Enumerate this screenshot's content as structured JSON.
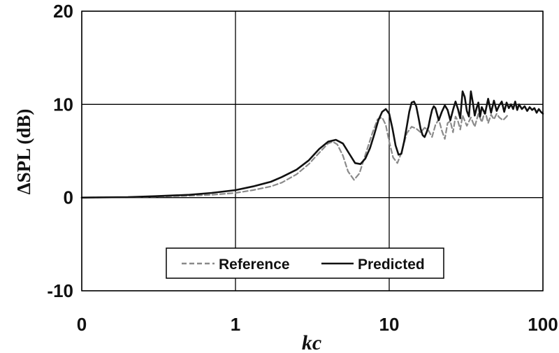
{
  "chart_data": {
    "type": "line",
    "xlabel": "kc",
    "ylabel": "ΔSPL (dB)",
    "x_scale": "log",
    "xlim": [
      0.1,
      100
    ],
    "ylim": [
      -10,
      20
    ],
    "grid": true,
    "legend_position": "bottom-center",
    "x_tick_labels": [
      "0",
      "1",
      "10",
      "100"
    ],
    "y_tick_labels": [
      "-10",
      "0",
      "10",
      "20"
    ],
    "y_ticks": [
      -10,
      0,
      10,
      20
    ],
    "series": [
      {
        "name": "Reference",
        "style": "dashed",
        "color": "#8a8a8a",
        "x": [
          0.1,
          0.2,
          0.3,
          0.5,
          0.7,
          1.0,
          1.3,
          1.7,
          2.0,
          2.5,
          3.0,
          3.5,
          4.0,
          4.3,
          4.6,
          5.0,
          5.4,
          5.9,
          6.4,
          7.0,
          7.8,
          8.4,
          9.0,
          9.5,
          10.0,
          10.6,
          11.3,
          12.0,
          13.0,
          14.0,
          15.0,
          16.0,
          17.0,
          18.0,
          19.0,
          20.0,
          21.0,
          22.0,
          23.0,
          24.0,
          25.0,
          26.0,
          27.0,
          28.0,
          29.0,
          30.0,
          32.0,
          34.0,
          36.0,
          38.0,
          40.0,
          42.0,
          44.0,
          46.0,
          48.0,
          50.0,
          52.0,
          55.0,
          58.0,
          60.0
        ],
        "y": [
          0.0,
          0.05,
          0.1,
          0.2,
          0.3,
          0.5,
          0.8,
          1.2,
          1.6,
          2.5,
          3.6,
          4.8,
          5.8,
          6.0,
          5.7,
          4.5,
          2.8,
          1.9,
          2.6,
          4.6,
          7.0,
          8.4,
          8.6,
          7.8,
          6.0,
          4.3,
          3.7,
          4.8,
          6.9,
          7.6,
          7.4,
          7.0,
          7.5,
          7.2,
          6.5,
          7.8,
          8.4,
          7.2,
          6.3,
          8.0,
          8.2,
          7.0,
          8.7,
          8.2,
          7.3,
          8.8,
          7.7,
          8.6,
          7.6,
          9.0,
          8.1,
          9.3,
          8.0,
          8.9,
          8.4,
          9.0,
          8.6,
          8.3,
          8.7,
          9.0
        ]
      },
      {
        "name": "Predicted",
        "style": "solid",
        "color": "#111111",
        "x": [
          0.1,
          0.2,
          0.3,
          0.5,
          0.7,
          1.0,
          1.3,
          1.7,
          2.0,
          2.5,
          3.0,
          3.5,
          4.0,
          4.5,
          5.0,
          5.5,
          6.0,
          6.5,
          7.0,
          7.5,
          8.0,
          8.5,
          9.0,
          9.5,
          10.0,
          10.5,
          11.0,
          11.5,
          12.0,
          12.5,
          13.0,
          13.5,
          14.0,
          14.5,
          15.0,
          15.5,
          16.0,
          16.5,
          17.0,
          17.5,
          18.0,
          18.5,
          19.0,
          19.5,
          20.0,
          21.0,
          22.0,
          23.0,
          24.0,
          25.0,
          26.0,
          27.0,
          28.0,
          29.0,
          30.0,
          31.0,
          32.0,
          33.0,
          34.0,
          35.0,
          36.0,
          37.0,
          38.0,
          39.0,
          40.0,
          42.0,
          44.0,
          46.0,
          48.0,
          50.0,
          52.0,
          54.0,
          56.0,
          58.0,
          60.0,
          62.0,
          64.0,
          66.0,
          68.0,
          70.0,
          73.0,
          76.0,
          79.0,
          82.0,
          85.0,
          88.0,
          91.0,
          94.0,
          97.0,
          100.0
        ],
        "y": [
          0.0,
          0.05,
          0.15,
          0.3,
          0.5,
          0.8,
          1.2,
          1.7,
          2.2,
          3.0,
          4.0,
          5.2,
          6.0,
          6.2,
          5.8,
          4.7,
          3.7,
          3.6,
          4.2,
          5.3,
          6.8,
          8.3,
          9.2,
          9.5,
          9.0,
          7.4,
          5.6,
          4.6,
          4.7,
          6.0,
          7.6,
          9.2,
          10.2,
          10.3,
          9.8,
          8.6,
          7.4,
          6.7,
          6.5,
          7.0,
          7.6,
          8.6,
          9.4,
          9.8,
          9.6,
          8.3,
          9.2,
          9.9,
          9.4,
          8.3,
          9.4,
          10.3,
          9.5,
          8.5,
          11.4,
          10.8,
          9.3,
          8.7,
          11.4,
          10.2,
          8.8,
          9.6,
          10.2,
          8.7,
          9.7,
          9.0,
          10.6,
          9.1,
          10.4,
          9.3,
          9.9,
          10.3,
          9.2,
          10.2,
          9.6,
          10.0,
          9.5,
          10.3,
          9.4,
          10.0,
          9.5,
          9.8,
          9.3,
          9.7,
          9.4,
          9.6,
          9.1,
          9.5,
          9.2,
          9.0
        ]
      }
    ]
  }
}
